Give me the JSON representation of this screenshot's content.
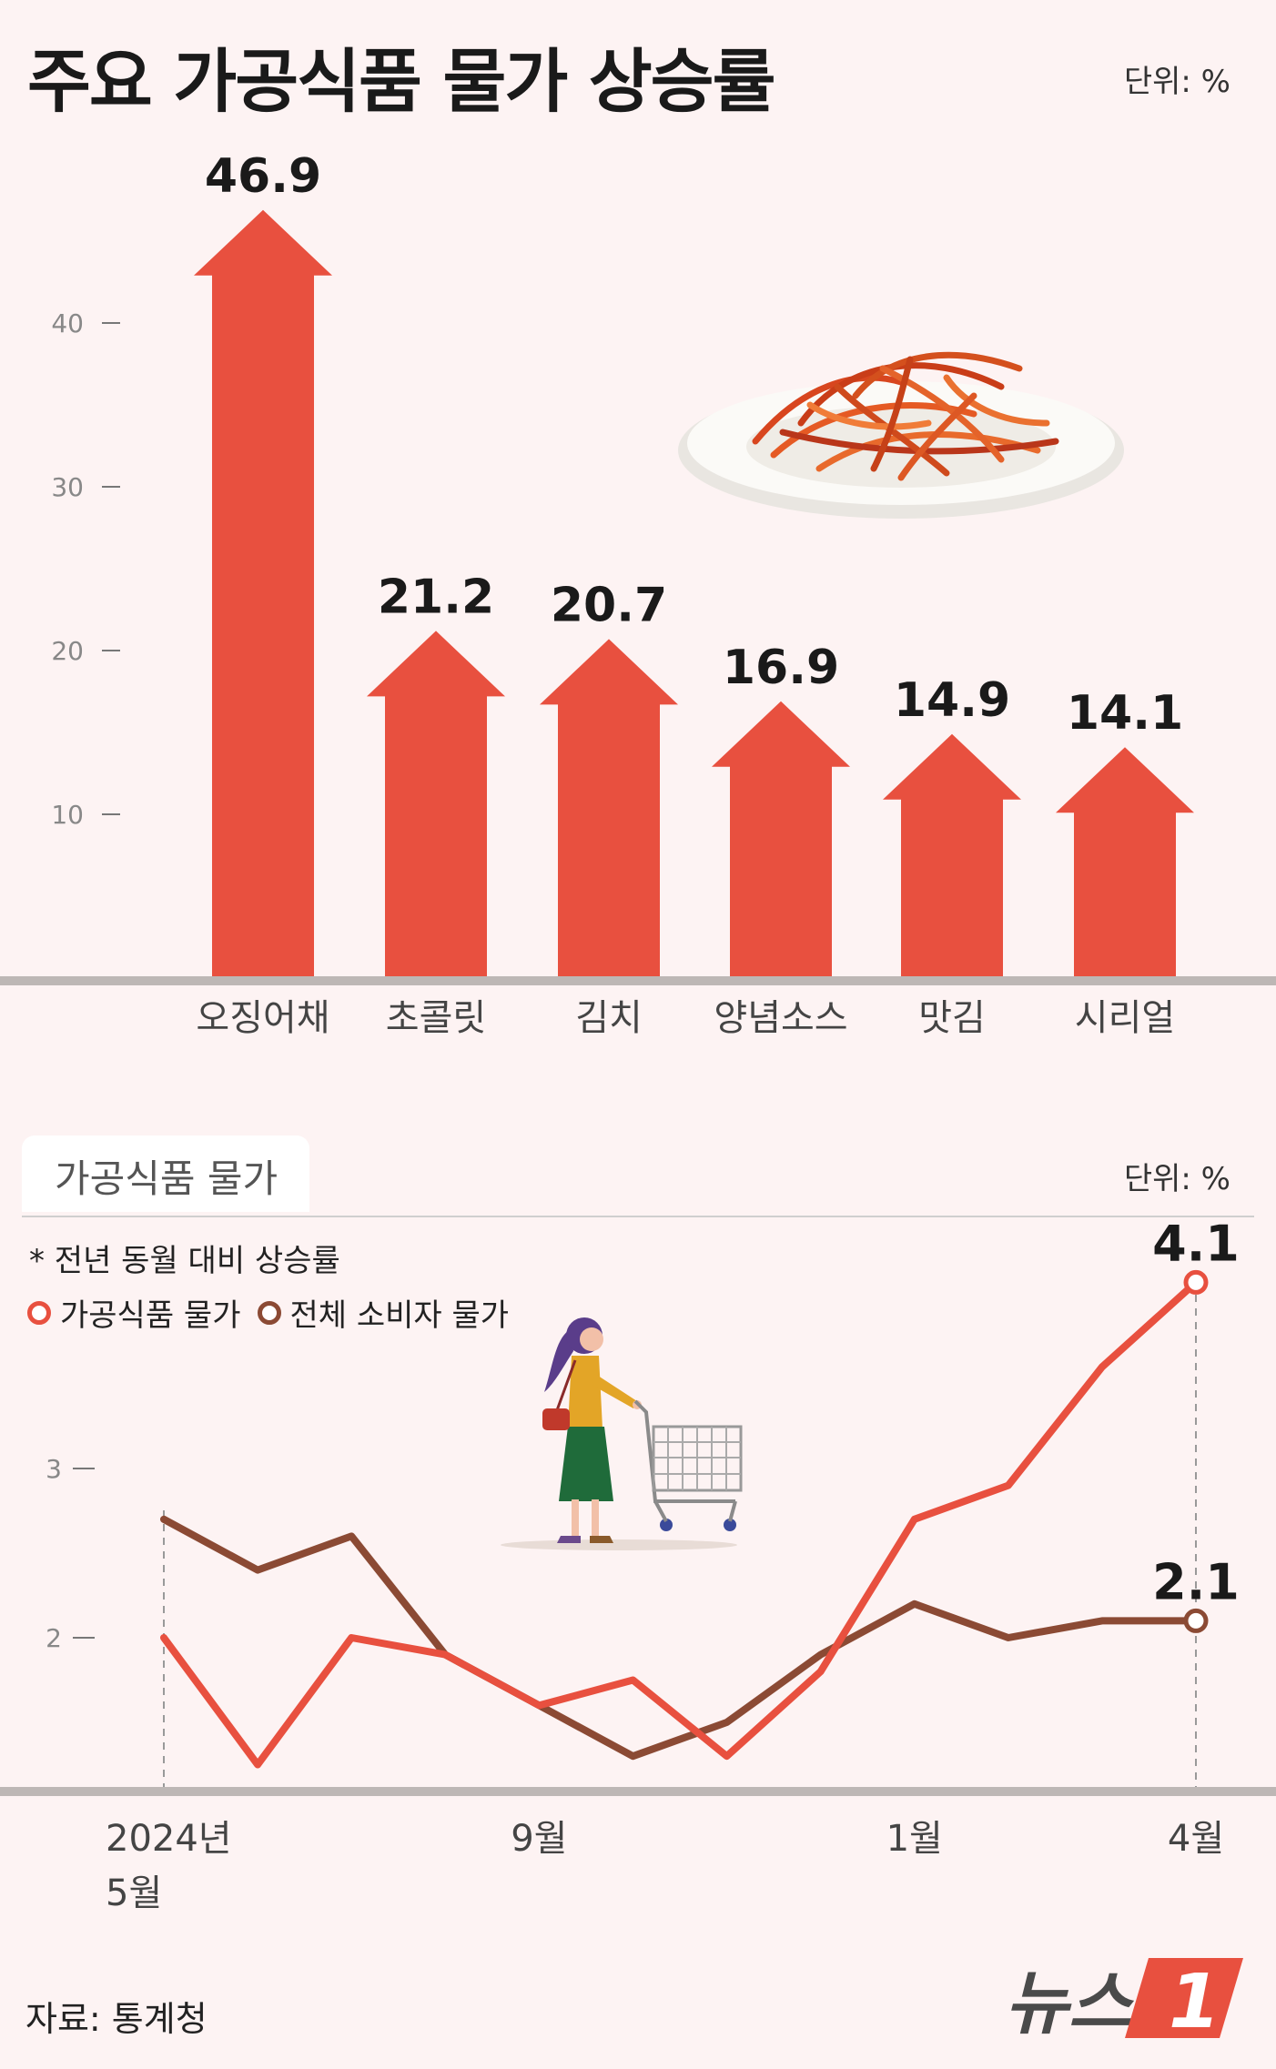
{
  "header": {
    "title": "주요 가공식품 물가 상승률",
    "unit": "단위: %"
  },
  "chart_data": [
    {
      "type": "bar",
      "title": "주요 가공식품 물가 상승률",
      "unit": "단위: %",
      "categories": [
        "오징어채",
        "초콜릿",
        "김치",
        "양념소스",
        "맛김",
        "시리얼"
      ],
      "values": [
        46.9,
        21.2,
        20.7,
        16.9,
        14.9,
        14.1
      ],
      "value_labels": [
        "46.9",
        "21.2",
        "20.7",
        "16.9",
        "14.9",
        "14.1"
      ],
      "y_ticks": [
        10,
        20,
        30,
        40
      ],
      "ylim": [
        0,
        50
      ],
      "grid": false,
      "bar_color": "#e8503f"
    },
    {
      "type": "line",
      "title": "가공식품 물가",
      "unit": "단위: %",
      "note": "* 전년 동월 대비 상승률",
      "x": [
        "2024-05",
        "2024-06",
        "2024-07",
        "2024-08",
        "2024-09",
        "2024-10",
        "2024-11",
        "2024-12",
        "2025-01",
        "2025-02",
        "2025-03",
        "2025-04"
      ],
      "x_tick_labels": [
        {
          "index": 0,
          "line1": "2024년",
          "line2": "5월"
        },
        {
          "index": 4,
          "line1": "9월",
          "line2": ""
        },
        {
          "index": 8,
          "line1": "1월",
          "line2": ""
        },
        {
          "index": 11,
          "line1": "4월",
          "line2": ""
        }
      ],
      "y_ticks": [
        2,
        3
      ],
      "ylim": [
        1.15,
        4.35
      ],
      "series": [
        {
          "name": "가공식품 물가",
          "color": "#e8503f",
          "values": [
            2.0,
            1.25,
            2.0,
            1.9,
            1.6,
            1.75,
            1.3,
            1.8,
            2.7,
            2.9,
            3.6,
            4.1
          ],
          "end_label": "4.1"
        },
        {
          "name": "전체 소비자 물가",
          "color": "#8b4a34",
          "values": [
            2.7,
            2.4,
            2.6,
            1.9,
            1.6,
            1.3,
            1.5,
            1.9,
            2.2,
            2.0,
            2.1,
            2.1
          ],
          "end_label": "2.1"
        }
      ],
      "grid": false,
      "legend_position": "top-left"
    }
  ],
  "section2": {
    "title": "가공식품 물가",
    "unit": "단위: %",
    "note": "* 전년 동월 대비 상승률"
  },
  "footer": {
    "source": "자료: 통계청",
    "logo_text": "뉴스",
    "logo_badge": "1"
  },
  "icons": [
    "food-plate-icon",
    "shopper-cart-icon",
    "news1-logo-icon"
  ]
}
